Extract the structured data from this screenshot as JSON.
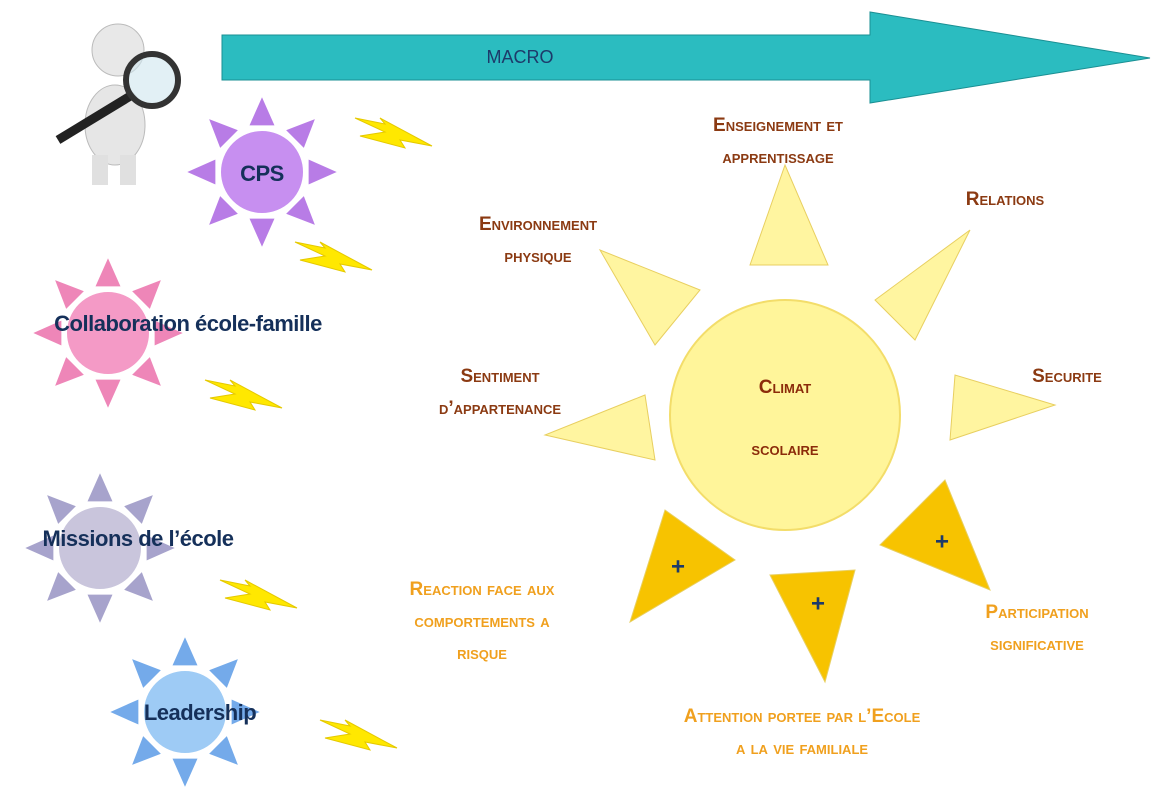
{
  "arrow": {
    "label": "MACRO"
  },
  "center": {
    "lines": [
      "Climat",
      "scolaire"
    ]
  },
  "factors": [
    {
      "lines": [
        "Enseignement et",
        "apprentissage"
      ]
    },
    {
      "lines": [
        "Relations"
      ]
    },
    {
      "lines": [
        "Environnement",
        "physique"
      ]
    },
    {
      "lines": [
        "Securite"
      ]
    },
    {
      "lines": [
        "Sentiment",
        "d’appartenance"
      ]
    },
    {
      "lines": [
        "Reaction face aux",
        "comportements a",
        "risque"
      ]
    },
    {
      "lines": [
        "Participation",
        "significative"
      ]
    },
    {
      "lines": [
        "Attention portee par l’Ecole",
        "a la vie familiale"
      ]
    }
  ],
  "plus_marks": [
    "+",
    "+",
    "+"
  ],
  "influences": [
    "CPS",
    "Collaboration école-famille",
    "Missions de l’école",
    "Leadership"
  ]
}
